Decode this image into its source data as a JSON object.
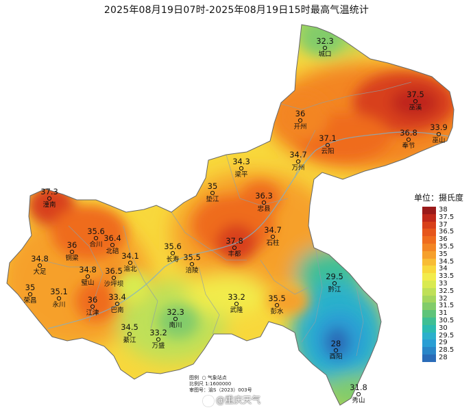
{
  "title": "2025年08月19日07时-2025年08月19日15时最高气温统计",
  "legend": {
    "title": "单位：摄氏度",
    "items": [
      {
        "label": "38",
        "color": "#9a1a1a"
      },
      {
        "label": "37.5",
        "color": "#c0281a"
      },
      {
        "label": "37",
        "color": "#d8401a"
      },
      {
        "label": "36.5",
        "color": "#e6561c"
      },
      {
        "label": "36",
        "color": "#ef6c1e"
      },
      {
        "label": "35.5",
        "color": "#f38524"
      },
      {
        "label": "35",
        "color": "#f6a02c"
      },
      {
        "label": "34.5",
        "color": "#f8bc34"
      },
      {
        "label": "34",
        "color": "#f8d83c"
      },
      {
        "label": "33.5",
        "color": "#f2ec4c"
      },
      {
        "label": "33",
        "color": "#d9ea50"
      },
      {
        "label": "32.5",
        "color": "#bfe058"
      },
      {
        "label": "32",
        "color": "#a4d65e"
      },
      {
        "label": "31.5",
        "color": "#82cc6a"
      },
      {
        "label": "31",
        "color": "#5ec47a"
      },
      {
        "label": "30.5",
        "color": "#3fbf94"
      },
      {
        "label": "30",
        "color": "#2cbbb0"
      },
      {
        "label": "29.5",
        "color": "#2cb0cc"
      },
      {
        "label": "29",
        "color": "#2a9ed4"
      },
      {
        "label": "28.5",
        "color": "#2a86c8"
      },
      {
        "label": "28",
        "color": "#2a6cb8"
      }
    ]
  },
  "stations": [
    {
      "name": "城口",
      "value": "32.3",
      "temp": 32.3
    },
    {
      "name": "巫溪",
      "value": "37.5",
      "temp": 37.5
    },
    {
      "name": "开州",
      "value": "36",
      "temp": 36
    },
    {
      "name": "云阳",
      "value": "37.1",
      "temp": 37.1
    },
    {
      "name": "奉节",
      "value": "36.8",
      "temp": 36.8
    },
    {
      "name": "巫山",
      "value": "33.9",
      "temp": 33.9
    },
    {
      "name": "万州",
      "value": "34.7",
      "temp": 34.7
    },
    {
      "name": "梁平",
      "value": "34.3",
      "temp": 34.3
    },
    {
      "name": "垫江",
      "value": "35",
      "temp": 35
    },
    {
      "name": "忠县",
      "value": "36.3",
      "temp": 36.3
    },
    {
      "name": "潼南",
      "value": "37.3",
      "temp": 37.3
    },
    {
      "name": "合川",
      "value": "35.6",
      "temp": 35.6
    },
    {
      "name": "铜梁",
      "value": "36",
      "temp": 36
    },
    {
      "name": "北碚",
      "value": "36.4",
      "temp": 36.4
    },
    {
      "name": "渝北",
      "value": "34.1",
      "temp": 34.1
    },
    {
      "name": "长寿",
      "value": "35.6",
      "temp": 35.6
    },
    {
      "name": "丰都",
      "value": "37.8",
      "temp": 37.8
    },
    {
      "name": "石柱",
      "value": "34.7",
      "temp": 34.7
    },
    {
      "name": "大足",
      "value": "34.8",
      "temp": 34.8
    },
    {
      "name": "璧山",
      "value": "34.8",
      "temp": 34.8
    },
    {
      "name": "沙坪坝",
      "value": "36.5",
      "temp": 36.5
    },
    {
      "name": "涪陵",
      "value": "35.5",
      "temp": 35.5
    },
    {
      "name": "荣昌",
      "value": "35",
      "temp": 35
    },
    {
      "name": "永川",
      "value": "35.1",
      "temp": 35.1
    },
    {
      "name": "巴南",
      "value": "33.4",
      "temp": 33.4
    },
    {
      "name": "江津",
      "value": "36",
      "temp": 36
    },
    {
      "name": "武隆",
      "value": "33.2",
      "temp": 33.2
    },
    {
      "name": "彭水",
      "value": "35.5",
      "temp": 35.5
    },
    {
      "name": "黔江",
      "value": "29.5",
      "temp": 29.5
    },
    {
      "name": "南川",
      "value": "32.3",
      "temp": 32.3
    },
    {
      "name": "綦江",
      "value": "34.5",
      "temp": 34.5
    },
    {
      "name": "万盛",
      "value": "33.2",
      "temp": 33.2
    },
    {
      "name": "酉阳",
      "value": "28",
      "temp": 28
    },
    {
      "name": "秀山",
      "value": "31.8",
      "temp": 31.8
    }
  ],
  "info": {
    "legend_label": "图例",
    "station_label": "气象站点",
    "scale": "比例尺  1:1600000",
    "approval": "审图号：渝S（2023）003号"
  },
  "watermark": "@重庆天气"
}
